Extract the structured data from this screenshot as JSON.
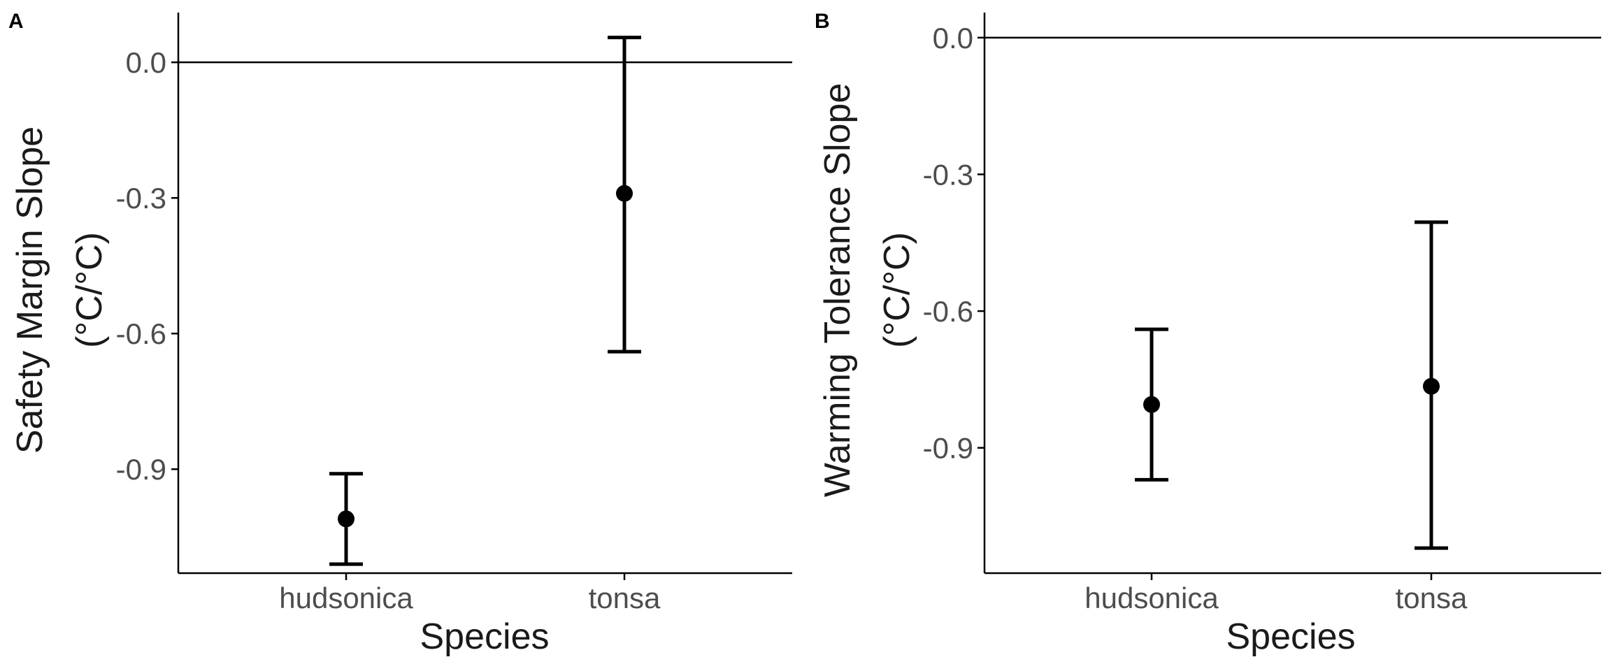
{
  "chart_data": [
    {
      "type": "scatter",
      "panel_label": "A",
      "xlabel": "Species",
      "ylabel_lines": [
        "Safety Margin Slope",
        "(°C/°C)"
      ],
      "categories": [
        "hudsonica",
        "tonsa"
      ],
      "ylim": [
        -1.13,
        0.11
      ],
      "yticks": [
        "0.0",
        "-0.3",
        "-0.6",
        "-0.9"
      ],
      "ytick_values": [
        0.0,
        -0.3,
        -0.6,
        -0.9
      ],
      "reference_line": 0.0,
      "series": [
        {
          "values": [
            -1.01,
            -0.29
          ],
          "lower": [
            -1.11,
            -0.64
          ],
          "upper": [
            -0.91,
            0.055
          ]
        }
      ]
    },
    {
      "type": "scatter",
      "panel_label": "B",
      "xlabel": "Species",
      "ylabel_lines": [
        "Warming Tolerance Slope",
        "(°C/°C)"
      ],
      "categories": [
        "hudsonica",
        "tonsa"
      ],
      "ylim": [
        -1.175,
        0.055
      ],
      "yticks": [
        "0.0",
        "-0.3",
        "-0.6",
        "-0.9"
      ],
      "ytick_values": [
        0.0,
        -0.3,
        -0.6,
        -0.9
      ],
      "reference_line": 0.0,
      "series": [
        {
          "values": [
            -0.805,
            -0.765
          ],
          "lower": [
            -0.97,
            -1.12
          ],
          "upper": [
            -0.64,
            -0.405
          ]
        }
      ]
    }
  ]
}
